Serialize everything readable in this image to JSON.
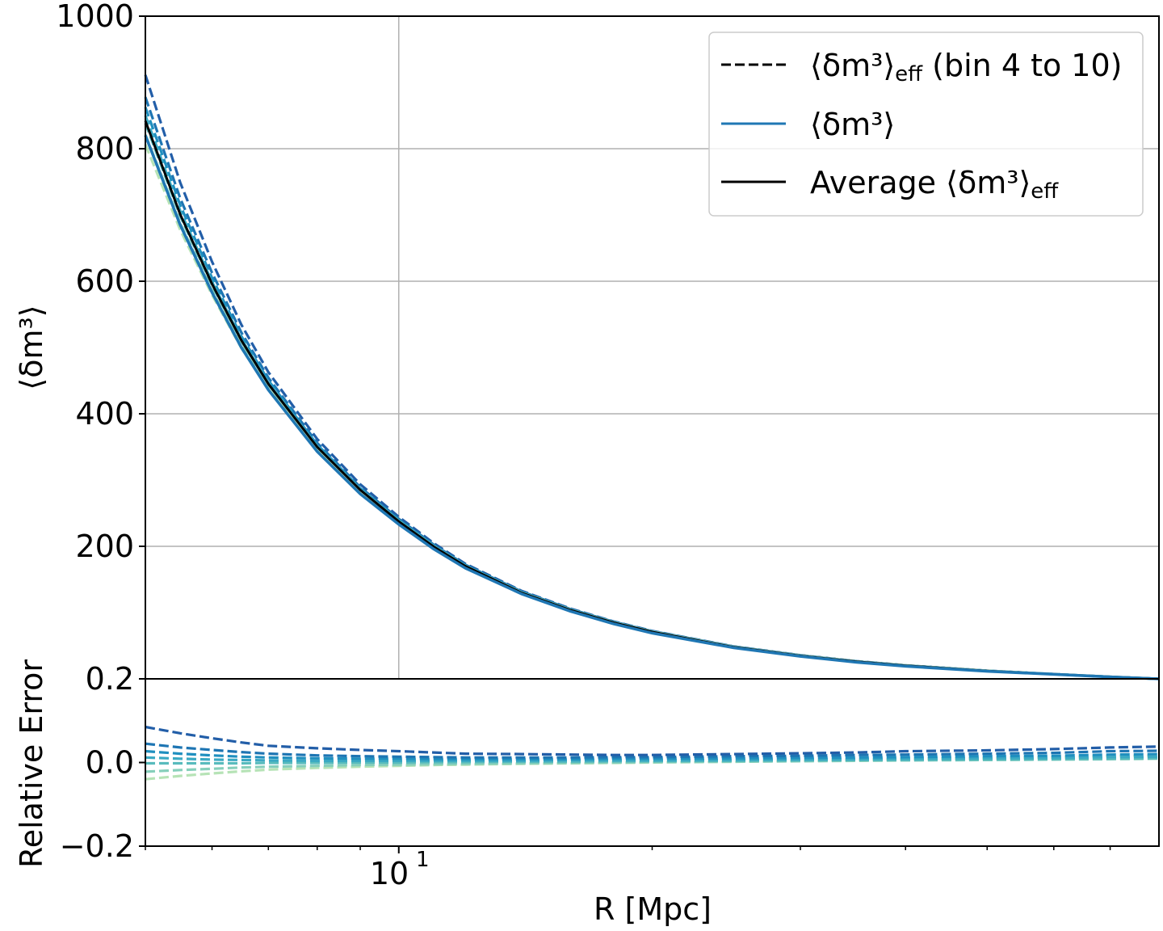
{
  "chart_data": [
    {
      "panel": "upper",
      "type": "line",
      "xscale": "log",
      "xlim": [
        5,
        80
      ],
      "ylim": [
        0,
        1000
      ],
      "ylabel": "⟨δm³⟩",
      "yticks": [
        1000,
        800,
        600,
        400,
        200
      ],
      "ytick_labels": [
        "1000",
        "800",
        "600",
        "400",
        "200"
      ],
      "grid": true,
      "x": [
        5,
        5.5,
        6,
        6.5,
        7,
        8,
        9,
        10,
        11,
        12,
        14,
        16,
        18,
        20,
        25,
        30,
        35,
        40,
        50,
        60,
        70,
        80
      ],
      "reference": [
        840,
        700,
        595,
        510,
        445,
        350,
        285,
        238,
        200,
        170,
        130,
        104,
        85,
        71,
        48,
        35,
        26,
        20,
        12,
        7,
        3,
        0
      ],
      "series": [
        {
          "name": "bin 4",
          "color": "#225ea8",
          "dash": true,
          "rel_error": [
            0.085,
            0.07,
            0.058,
            0.048,
            0.04,
            0.034,
            0.03,
            0.027,
            0.024,
            0.021,
            0.02,
            0.019,
            0.018,
            0.018,
            0.02,
            0.022,
            0.024,
            0.027,
            0.029,
            0.032,
            0.036,
            0.038
          ]
        },
        {
          "name": "bin 5",
          "color": "#1d75b3",
          "dash": true,
          "rel_error": [
            0.045,
            0.036,
            0.03,
            0.025,
            0.021,
            0.017,
            0.015,
            0.014,
            0.013,
            0.012,
            0.012,
            0.012,
            0.013,
            0.013,
            0.015,
            0.016,
            0.018,
            0.019,
            0.021,
            0.023,
            0.027,
            0.028
          ]
        },
        {
          "name": "bin 6",
          "color": "#1f8fbf",
          "dash": true,
          "rel_error": [
            0.027,
            0.021,
            0.017,
            0.014,
            0.012,
            0.01,
            0.009,
            0.009,
            0.008,
            0.008,
            0.008,
            0.008,
            0.009,
            0.009,
            0.01,
            0.011,
            0.012,
            0.013,
            0.015,
            0.016,
            0.019,
            0.02
          ]
        },
        {
          "name": "bin 7",
          "color": "#3aa9c3",
          "dash": true,
          "rel_error": [
            0.012,
            0.009,
            0.007,
            0.006,
            0.005,
            0.004,
            0.004,
            0.004,
            0.004,
            0.004,
            0.004,
            0.005,
            0.005,
            0.005,
            0.006,
            0.007,
            0.008,
            0.009,
            0.01,
            0.011,
            0.013,
            0.014
          ]
        },
        {
          "name": "bin 8",
          "color": "#58bbbd",
          "dash": true,
          "rel_error": [
            -0.002,
            -0.002,
            -0.002,
            -0.002,
            -0.001,
            -0.001,
            0.0,
            0.0,
            0.001,
            0.001,
            0.002,
            0.002,
            0.003,
            0.003,
            0.004,
            0.005,
            0.006,
            0.006,
            0.007,
            0.008,
            0.009,
            0.01
          ]
        },
        {
          "name": "bin 9",
          "color": "#86cfbb",
          "dash": true,
          "rel_error": [
            -0.022,
            -0.018,
            -0.015,
            -0.012,
            -0.01,
            -0.008,
            -0.006,
            -0.005,
            -0.004,
            -0.003,
            -0.002,
            -0.001,
            0.0,
            0.001,
            0.002,
            0.003,
            0.004,
            0.005,
            0.006,
            0.007,
            0.008,
            0.009
          ]
        },
        {
          "name": "bin 10",
          "color": "#b6e3b6",
          "dash": true,
          "rel_error": [
            -0.04,
            -0.032,
            -0.026,
            -0.021,
            -0.017,
            -0.013,
            -0.01,
            -0.008,
            -0.006,
            -0.005,
            -0.003,
            -0.002,
            -0.001,
            0.0,
            0.002,
            0.004,
            0.006,
            0.008,
            0.01,
            0.012,
            0.015,
            0.016
          ]
        }
      ],
      "true_series": {
        "name": "⟨δm³⟩",
        "color": "#1f77b4",
        "values": [
          820,
          685,
          583,
          500,
          436,
          343,
          279,
          233,
          196,
          167,
          128,
          102,
          83,
          69,
          47,
          34,
          25,
          19,
          11.5,
          6.8,
          2.9,
          0
        ]
      },
      "average_series": {
        "name": "Average ⟨δm³⟩eff",
        "color": "#000000",
        "values": [
          842,
          701,
          596,
          511,
          445,
          350,
          285,
          237.5,
          199.5,
          170,
          129.6,
          103.6,
          84.7,
          70.7,
          47.8,
          34.8,
          25.9,
          19.9,
          11.9,
          6.9,
          3.0,
          0
        ]
      },
      "legend": {
        "position": "upper-right",
        "entries": [
          {
            "label_main": "⟨δm³⟩",
            "label_sub": "eff",
            "label_suffix": " (bin 4 to 10)",
            "style": "dashed",
            "color": "#000000"
          },
          {
            "label_main": "⟨δm³⟩",
            "label_sub": "",
            "label_suffix": "",
            "style": "solid",
            "color": "#1f77b4"
          },
          {
            "label_prefix": "Average ",
            "label_main": "⟨δm³⟩",
            "label_sub": "eff",
            "label_suffix": "",
            "style": "solid",
            "color": "#000000"
          }
        ]
      }
    },
    {
      "panel": "lower",
      "type": "line",
      "xscale": "log",
      "xlim": [
        5,
        80
      ],
      "ylim": [
        -0.2,
        0.2
      ],
      "ylabel": "Relative Error",
      "xlabel": "R [Mpc]",
      "yticks": [
        0.2,
        0.0,
        -0.2
      ],
      "ytick_labels": [
        "0.2",
        "0.0",
        "−0.2"
      ],
      "xtick_label_base": "10",
      "xtick_label_exp": "1",
      "xtick_value": 10
    }
  ]
}
